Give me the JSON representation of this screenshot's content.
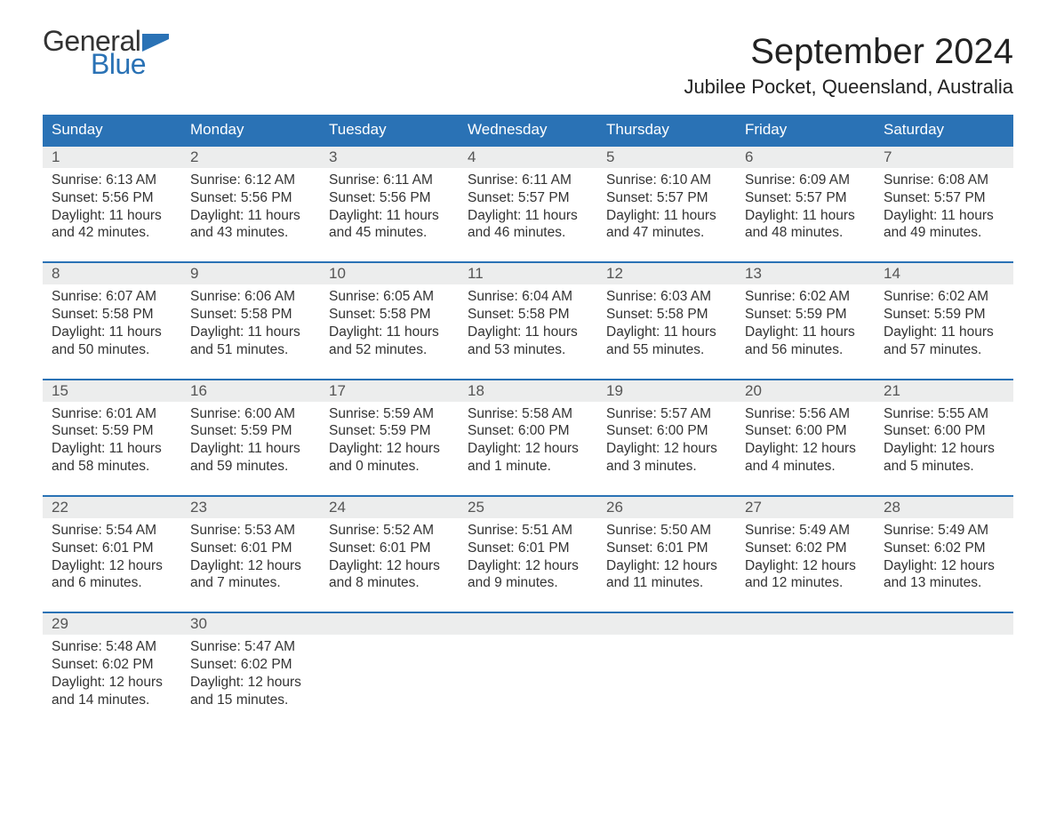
{
  "logo": {
    "word1": "General",
    "word2": "Blue",
    "word1_color": "#333333",
    "word2_color": "#2a72b5",
    "flag_color": "#2a72b5"
  },
  "title": "September 2024",
  "location": "Jubilee Pocket, Queensland, Australia",
  "colors": {
    "header_bg": "#2a72b5",
    "header_text": "#ffffff",
    "week_border": "#2a72b5",
    "daynum_bg": "#eceded",
    "daynum_text": "#555555",
    "body_text": "#333333",
    "page_bg": "#ffffff"
  },
  "fonts": {
    "title_size_pt": 30,
    "location_size_pt": 17,
    "weekday_size_pt": 13,
    "daynum_size_pt": 13,
    "body_size_pt": 12
  },
  "calendar": {
    "type": "table",
    "weekdays": [
      "Sunday",
      "Monday",
      "Tuesday",
      "Wednesday",
      "Thursday",
      "Friday",
      "Saturday"
    ],
    "weeks": [
      [
        {
          "day": "1",
          "sunrise": "Sunrise: 6:13 AM",
          "sunset": "Sunset: 5:56 PM",
          "dl1": "Daylight: 11 hours",
          "dl2": "and 42 minutes."
        },
        {
          "day": "2",
          "sunrise": "Sunrise: 6:12 AM",
          "sunset": "Sunset: 5:56 PM",
          "dl1": "Daylight: 11 hours",
          "dl2": "and 43 minutes."
        },
        {
          "day": "3",
          "sunrise": "Sunrise: 6:11 AM",
          "sunset": "Sunset: 5:56 PM",
          "dl1": "Daylight: 11 hours",
          "dl2": "and 45 minutes."
        },
        {
          "day": "4",
          "sunrise": "Sunrise: 6:11 AM",
          "sunset": "Sunset: 5:57 PM",
          "dl1": "Daylight: 11 hours",
          "dl2": "and 46 minutes."
        },
        {
          "day": "5",
          "sunrise": "Sunrise: 6:10 AM",
          "sunset": "Sunset: 5:57 PM",
          "dl1": "Daylight: 11 hours",
          "dl2": "and 47 minutes."
        },
        {
          "day": "6",
          "sunrise": "Sunrise: 6:09 AM",
          "sunset": "Sunset: 5:57 PM",
          "dl1": "Daylight: 11 hours",
          "dl2": "and 48 minutes."
        },
        {
          "day": "7",
          "sunrise": "Sunrise: 6:08 AM",
          "sunset": "Sunset: 5:57 PM",
          "dl1": "Daylight: 11 hours",
          "dl2": "and 49 minutes."
        }
      ],
      [
        {
          "day": "8",
          "sunrise": "Sunrise: 6:07 AM",
          "sunset": "Sunset: 5:58 PM",
          "dl1": "Daylight: 11 hours",
          "dl2": "and 50 minutes."
        },
        {
          "day": "9",
          "sunrise": "Sunrise: 6:06 AM",
          "sunset": "Sunset: 5:58 PM",
          "dl1": "Daylight: 11 hours",
          "dl2": "and 51 minutes."
        },
        {
          "day": "10",
          "sunrise": "Sunrise: 6:05 AM",
          "sunset": "Sunset: 5:58 PM",
          "dl1": "Daylight: 11 hours",
          "dl2": "and 52 minutes."
        },
        {
          "day": "11",
          "sunrise": "Sunrise: 6:04 AM",
          "sunset": "Sunset: 5:58 PM",
          "dl1": "Daylight: 11 hours",
          "dl2": "and 53 minutes."
        },
        {
          "day": "12",
          "sunrise": "Sunrise: 6:03 AM",
          "sunset": "Sunset: 5:58 PM",
          "dl1": "Daylight: 11 hours",
          "dl2": "and 55 minutes."
        },
        {
          "day": "13",
          "sunrise": "Sunrise: 6:02 AM",
          "sunset": "Sunset: 5:59 PM",
          "dl1": "Daylight: 11 hours",
          "dl2": "and 56 minutes."
        },
        {
          "day": "14",
          "sunrise": "Sunrise: 6:02 AM",
          "sunset": "Sunset: 5:59 PM",
          "dl1": "Daylight: 11 hours",
          "dl2": "and 57 minutes."
        }
      ],
      [
        {
          "day": "15",
          "sunrise": "Sunrise: 6:01 AM",
          "sunset": "Sunset: 5:59 PM",
          "dl1": "Daylight: 11 hours",
          "dl2": "and 58 minutes."
        },
        {
          "day": "16",
          "sunrise": "Sunrise: 6:00 AM",
          "sunset": "Sunset: 5:59 PM",
          "dl1": "Daylight: 11 hours",
          "dl2": "and 59 minutes."
        },
        {
          "day": "17",
          "sunrise": "Sunrise: 5:59 AM",
          "sunset": "Sunset: 5:59 PM",
          "dl1": "Daylight: 12 hours",
          "dl2": "and 0 minutes."
        },
        {
          "day": "18",
          "sunrise": "Sunrise: 5:58 AM",
          "sunset": "Sunset: 6:00 PM",
          "dl1": "Daylight: 12 hours",
          "dl2": "and 1 minute."
        },
        {
          "day": "19",
          "sunrise": "Sunrise: 5:57 AM",
          "sunset": "Sunset: 6:00 PM",
          "dl1": "Daylight: 12 hours",
          "dl2": "and 3 minutes."
        },
        {
          "day": "20",
          "sunrise": "Sunrise: 5:56 AM",
          "sunset": "Sunset: 6:00 PM",
          "dl1": "Daylight: 12 hours",
          "dl2": "and 4 minutes."
        },
        {
          "day": "21",
          "sunrise": "Sunrise: 5:55 AM",
          "sunset": "Sunset: 6:00 PM",
          "dl1": "Daylight: 12 hours",
          "dl2": "and 5 minutes."
        }
      ],
      [
        {
          "day": "22",
          "sunrise": "Sunrise: 5:54 AM",
          "sunset": "Sunset: 6:01 PM",
          "dl1": "Daylight: 12 hours",
          "dl2": "and 6 minutes."
        },
        {
          "day": "23",
          "sunrise": "Sunrise: 5:53 AM",
          "sunset": "Sunset: 6:01 PM",
          "dl1": "Daylight: 12 hours",
          "dl2": "and 7 minutes."
        },
        {
          "day": "24",
          "sunrise": "Sunrise: 5:52 AM",
          "sunset": "Sunset: 6:01 PM",
          "dl1": "Daylight: 12 hours",
          "dl2": "and 8 minutes."
        },
        {
          "day": "25",
          "sunrise": "Sunrise: 5:51 AM",
          "sunset": "Sunset: 6:01 PM",
          "dl1": "Daylight: 12 hours",
          "dl2": "and 9 minutes."
        },
        {
          "day": "26",
          "sunrise": "Sunrise: 5:50 AM",
          "sunset": "Sunset: 6:01 PM",
          "dl1": "Daylight: 12 hours",
          "dl2": "and 11 minutes."
        },
        {
          "day": "27",
          "sunrise": "Sunrise: 5:49 AM",
          "sunset": "Sunset: 6:02 PM",
          "dl1": "Daylight: 12 hours",
          "dl2": "and 12 minutes."
        },
        {
          "day": "28",
          "sunrise": "Sunrise: 5:49 AM",
          "sunset": "Sunset: 6:02 PM",
          "dl1": "Daylight: 12 hours",
          "dl2": "and 13 minutes."
        }
      ],
      [
        {
          "day": "29",
          "sunrise": "Sunrise: 5:48 AM",
          "sunset": "Sunset: 6:02 PM",
          "dl1": "Daylight: 12 hours",
          "dl2": "and 14 minutes."
        },
        {
          "day": "30",
          "sunrise": "Sunrise: 5:47 AM",
          "sunset": "Sunset: 6:02 PM",
          "dl1": "Daylight: 12 hours",
          "dl2": "and 15 minutes."
        },
        {
          "empty": true
        },
        {
          "empty": true
        },
        {
          "empty": true
        },
        {
          "empty": true
        },
        {
          "empty": true
        }
      ]
    ]
  }
}
